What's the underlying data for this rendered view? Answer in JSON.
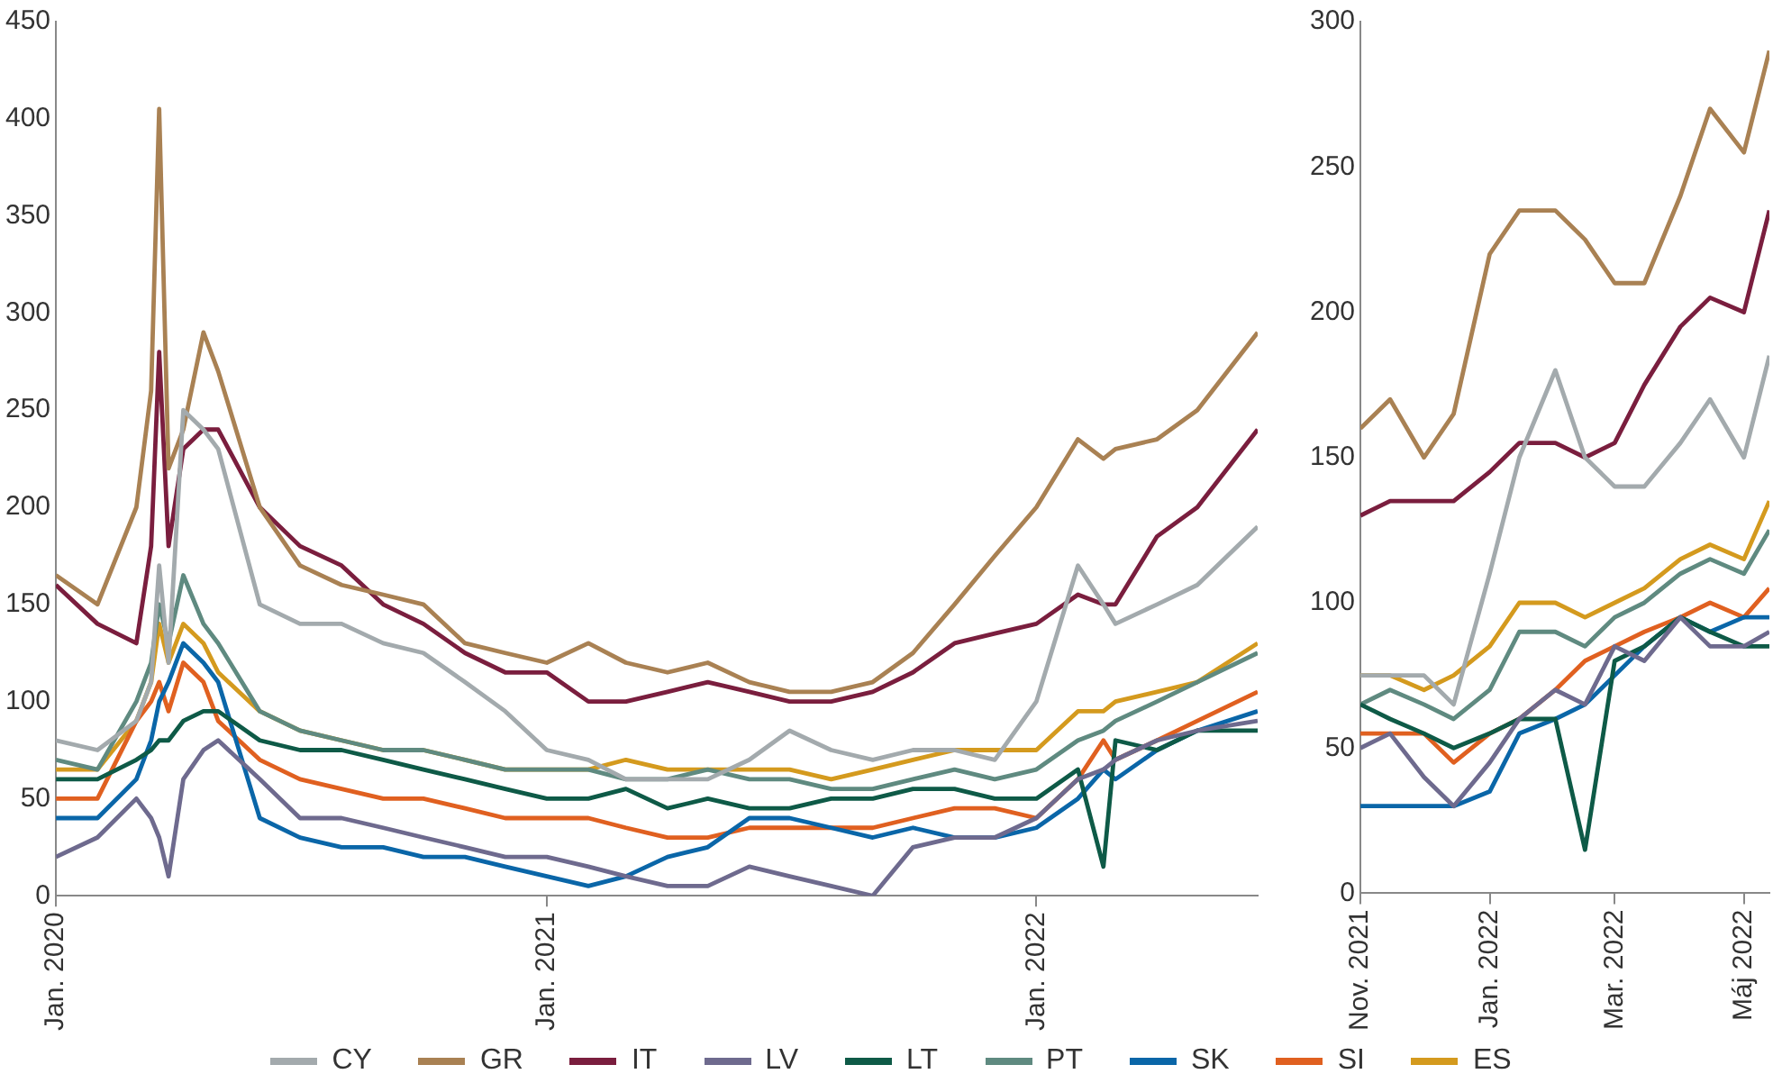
{
  "chart_data": [
    {
      "type": "line",
      "legend": "bottom",
      "grid": false,
      "marker": "none",
      "line_style": "solid",
      "x": [
        "2020-01-01",
        "2020-02-01",
        "2020-03-01",
        "2020-03-12",
        "2020-03-18",
        "2020-03-25",
        "2020-04-05",
        "2020-04-20",
        "2020-05-01",
        "2020-06-01",
        "2020-07-01",
        "2020-08-01",
        "2020-09-01",
        "2020-10-01",
        "2020-11-01",
        "2020-12-01",
        "2021-01-01",
        "2021-02-01",
        "2021-03-01",
        "2021-04-01",
        "2021-05-01",
        "2021-06-01",
        "2021-07-01",
        "2021-08-01",
        "2021-09-01",
        "2021-10-01",
        "2021-11-01",
        "2021-12-01",
        "2022-01-01",
        "2022-02-01",
        "2022-02-20",
        "2022-03-01",
        "2022-04-01",
        "2022-05-01",
        "2022-06-15"
      ],
      "xlim": [
        "2020-01-01",
        "2022-06-15"
      ],
      "xticks": [
        {
          "value": "2020-01-01",
          "label": "Jan. 2020"
        },
        {
          "value": "2021-01-01",
          "label": "Jan. 2021"
        },
        {
          "value": "2022-01-01",
          "label": "Jan. 2022"
        }
      ],
      "ylim": [
        0,
        450
      ],
      "yticks": [
        0,
        50,
        100,
        150,
        200,
        250,
        300,
        350,
        400,
        450
      ],
      "series": [
        {
          "name": "CY",
          "color": "#a3aaad",
          "values": [
            80,
            75,
            90,
            110,
            170,
            120,
            250,
            240,
            230,
            150,
            140,
            140,
            130,
            125,
            110,
            95,
            75,
            70,
            60,
            60,
            60,
            70,
            85,
            75,
            70,
            75,
            75,
            70,
            100,
            170,
            150,
            140,
            150,
            160,
            190
          ]
        },
        {
          "name": "GR",
          "color": "#a98153",
          "values": [
            165,
            150,
            200,
            260,
            405,
            220,
            240,
            290,
            270,
            200,
            170,
            160,
            155,
            150,
            130,
            125,
            120,
            130,
            120,
            115,
            120,
            110,
            105,
            105,
            110,
            125,
            150,
            175,
            200,
            235,
            225,
            230,
            235,
            250,
            290
          ]
        },
        {
          "name": "IT",
          "color": "#7a1e3e",
          "values": [
            160,
            140,
            130,
            180,
            280,
            180,
            230,
            240,
            240,
            200,
            180,
            170,
            150,
            140,
            125,
            115,
            115,
            100,
            100,
            105,
            110,
            105,
            100,
            100,
            105,
            115,
            130,
            135,
            140,
            155,
            150,
            150,
            185,
            200,
            240
          ]
        },
        {
          "name": "LV",
          "color": "#6e6a8e",
          "values": [
            20,
            30,
            50,
            40,
            30,
            10,
            60,
            75,
            80,
            60,
            40,
            40,
            35,
            30,
            25,
            20,
            20,
            15,
            10,
            5,
            5,
            15,
            10,
            5,
            0,
            25,
            30,
            30,
            40,
            60,
            65,
            70,
            80,
            85,
            90
          ]
        },
        {
          "name": "LT",
          "color": "#0e5a47",
          "values": [
            60,
            60,
            70,
            75,
            80,
            80,
            90,
            95,
            95,
            80,
            75,
            75,
            70,
            65,
            60,
            55,
            50,
            50,
            55,
            45,
            50,
            45,
            45,
            50,
            50,
            55,
            55,
            50,
            50,
            65,
            15,
            80,
            75,
            85,
            85
          ]
        },
        {
          "name": "PT",
          "color": "#5f8a80",
          "values": [
            70,
            65,
            100,
            120,
            150,
            130,
            165,
            140,
            130,
            95,
            85,
            80,
            75,
            75,
            70,
            65,
            65,
            65,
            60,
            60,
            65,
            60,
            60,
            55,
            55,
            60,
            65,
            60,
            65,
            80,
            85,
            90,
            100,
            110,
            125
          ]
        },
        {
          "name": "SK",
          "color": "#0a66a8",
          "values": [
            40,
            40,
            60,
            80,
            100,
            110,
            130,
            120,
            110,
            40,
            30,
            25,
            25,
            20,
            20,
            15,
            10,
            5,
            10,
            20,
            25,
            40,
            40,
            35,
            30,
            35,
            30,
            30,
            35,
            50,
            65,
            60,
            75,
            85,
            95
          ]
        },
        {
          "name": "SI",
          "color": "#e06020",
          "values": [
            50,
            50,
            90,
            100,
            110,
            95,
            120,
            110,
            90,
            70,
            60,
            55,
            50,
            50,
            45,
            40,
            40,
            40,
            35,
            30,
            30,
            35,
            35,
            35,
            35,
            40,
            45,
            45,
            40,
            60,
            80,
            70,
            80,
            90,
            105
          ]
        },
        {
          "name": "ES",
          "color": "#d49a1e",
          "values": [
            65,
            65,
            90,
            110,
            140,
            120,
            140,
            130,
            115,
            95,
            85,
            80,
            75,
            75,
            70,
            65,
            65,
            65,
            70,
            65,
            65,
            65,
            65,
            60,
            65,
            70,
            75,
            75,
            75,
            95,
            95,
            100,
            105,
            110,
            130
          ]
        }
      ]
    },
    {
      "type": "line",
      "grid": false,
      "marker": "none",
      "line_style": "solid",
      "x": [
        "2021-11-01",
        "2021-11-15",
        "2021-12-01",
        "2021-12-15",
        "2022-01-01",
        "2022-01-15",
        "2022-02-01",
        "2022-02-15",
        "2022-03-01",
        "2022-03-15",
        "2022-04-01",
        "2022-04-15",
        "2022-05-01",
        "2022-05-13"
      ],
      "xlim": [
        "2021-11-01",
        "2022-05-13"
      ],
      "xticks": [
        {
          "value": "2021-11-01",
          "label": "Nov. 2021"
        },
        {
          "value": "2022-01-01",
          "label": "Jan. 2022"
        },
        {
          "value": "2022-03-01",
          "label": "Mar. 2022"
        },
        {
          "value": "2022-05-01",
          "label": "Máj 2022"
        }
      ],
      "ylim": [
        0,
        300
      ],
      "yticks": [
        0,
        50,
        100,
        150,
        200,
        250,
        300
      ],
      "series": [
        {
          "color": "#a3aaad",
          "values": [
            75,
            75,
            75,
            65,
            110,
            150,
            180,
            150,
            140,
            140,
            155,
            170,
            150,
            185
          ]
        },
        {
          "color": "#a98153",
          "values": [
            160,
            170,
            150,
            165,
            220,
            235,
            235,
            225,
            210,
            210,
            240,
            270,
            255,
            290
          ]
        },
        {
          "color": "#7a1e3e",
          "values": [
            130,
            135,
            135,
            135,
            145,
            155,
            155,
            150,
            155,
            175,
            195,
            205,
            200,
            235
          ]
        },
        {
          "color": "#6e6a8e",
          "values": [
            50,
            55,
            40,
            30,
            45,
            60,
            70,
            65,
            85,
            80,
            95,
            85,
            85,
            90
          ]
        },
        {
          "color": "#0e5a47",
          "values": [
            65,
            60,
            55,
            50,
            55,
            60,
            60,
            15,
            80,
            85,
            95,
            90,
            85,
            85
          ]
        },
        {
          "color": "#5f8a80",
          "values": [
            65,
            70,
            65,
            60,
            70,
            90,
            90,
            85,
            95,
            100,
            110,
            115,
            110,
            125
          ]
        },
        {
          "color": "#0a66a8",
          "values": [
            30,
            30,
            30,
            30,
            35,
            55,
            60,
            65,
            75,
            85,
            95,
            90,
            95,
            95
          ]
        },
        {
          "color": "#e06020",
          "values": [
            55,
            55,
            55,
            45,
            55,
            60,
            70,
            80,
            85,
            90,
            95,
            100,
            95,
            105
          ]
        },
        {
          "color": "#d49a1e",
          "values": [
            75,
            75,
            70,
            75,
            85,
            100,
            100,
            95,
            100,
            105,
            115,
            120,
            115,
            135
          ]
        }
      ]
    }
  ]
}
